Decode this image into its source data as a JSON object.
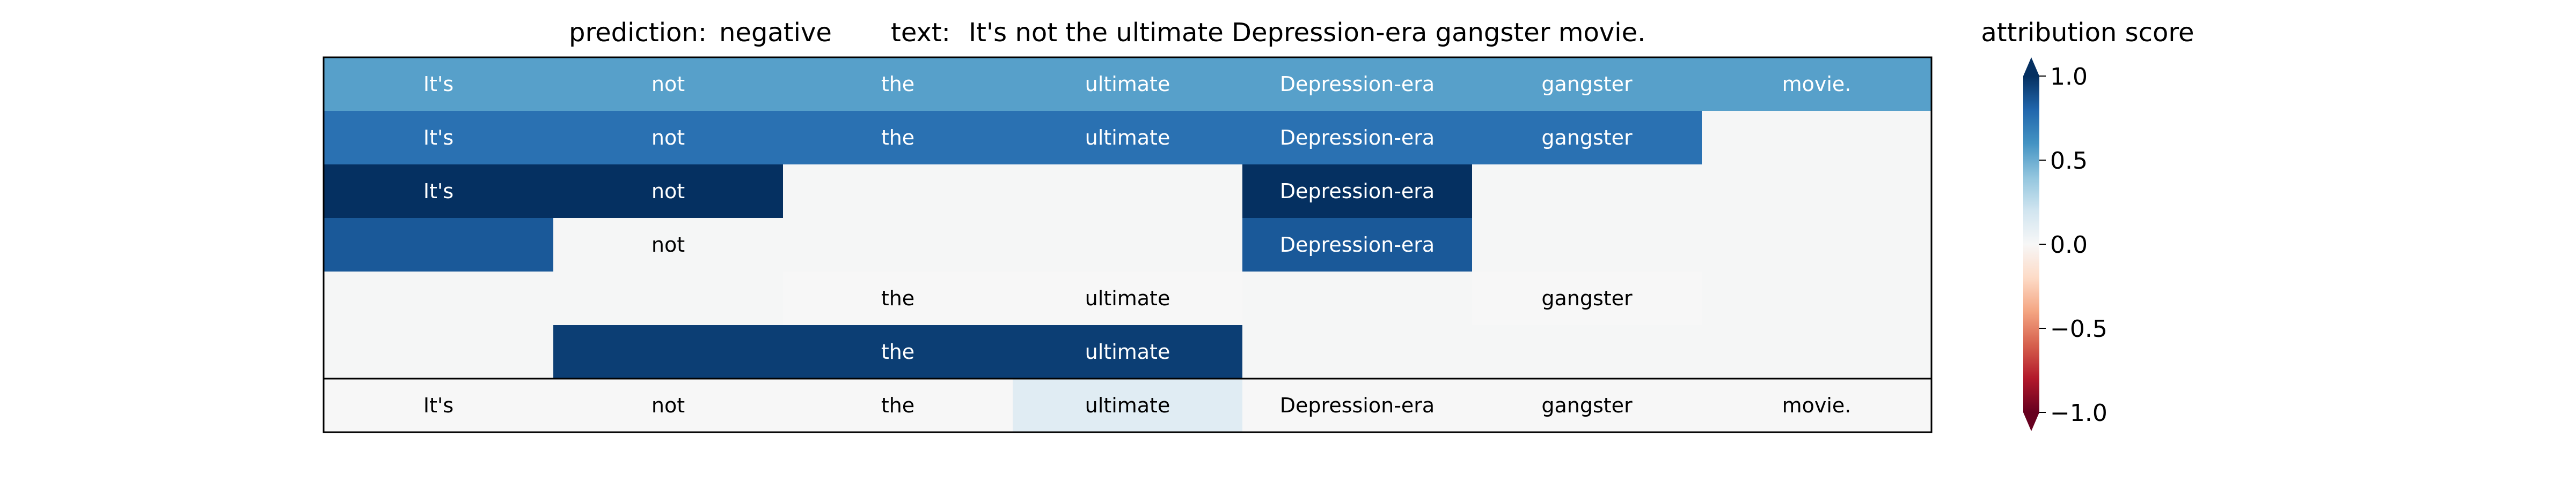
{
  "header": {
    "prediction_label": "prediction:",
    "prediction_value": "negative",
    "text_label": "text:",
    "text_value": "It's not the ultimate Depression-era gangster movie."
  },
  "chart_data": {
    "type": "heatmap",
    "tokens": [
      "It's",
      "not",
      "the",
      "ultimate",
      "Depression-era",
      "gangster",
      "movie."
    ],
    "rows": [
      [
        0.55,
        0.55,
        0.55,
        0.55,
        0.55,
        0.55,
        0.55
      ],
      [
        0.75,
        0.75,
        0.75,
        0.75,
        0.75,
        0.75,
        null
      ],
      [
        1.0,
        1.0,
        null,
        null,
        1.0,
        null,
        null
      ],
      [
        0.85,
        null,
        null,
        null,
        0.85,
        null,
        null
      ],
      [
        null,
        null,
        0.0,
        0.0,
        null,
        0.0,
        null
      ],
      [
        null,
        0.95,
        0.95,
        0.95,
        null,
        null,
        null
      ]
    ],
    "row_shows_text": [
      [
        true,
        true,
        true,
        true,
        true,
        true,
        true
      ],
      [
        true,
        true,
        true,
        true,
        true,
        true,
        false
      ],
      [
        true,
        true,
        false,
        false,
        true,
        false,
        false
      ],
      [
        false,
        true,
        false,
        false,
        true,
        false,
        false
      ],
      [
        false,
        false,
        true,
        true,
        false,
        true,
        false
      ],
      [
        false,
        false,
        true,
        true,
        false,
        false,
        false
      ]
    ],
    "bottom_row": {
      "values": [
        0.0,
        0.0,
        0.0,
        0.12,
        0.0,
        0.0,
        0.0
      ]
    },
    "colorbar": {
      "title": "attribution score",
      "ticks": [
        1.0,
        0.5,
        0.0,
        -0.5,
        -1.0
      ],
      "tick_labels": [
        "1.0",
        "0.5",
        "0.0",
        "−0.5",
        "−1.0"
      ],
      "range": [
        -1.0,
        1.0
      ],
      "colormap": "RdBu"
    },
    "colors": {
      "empty_cell": "#f5f6f6",
      "cell_border": "#000000"
    }
  }
}
